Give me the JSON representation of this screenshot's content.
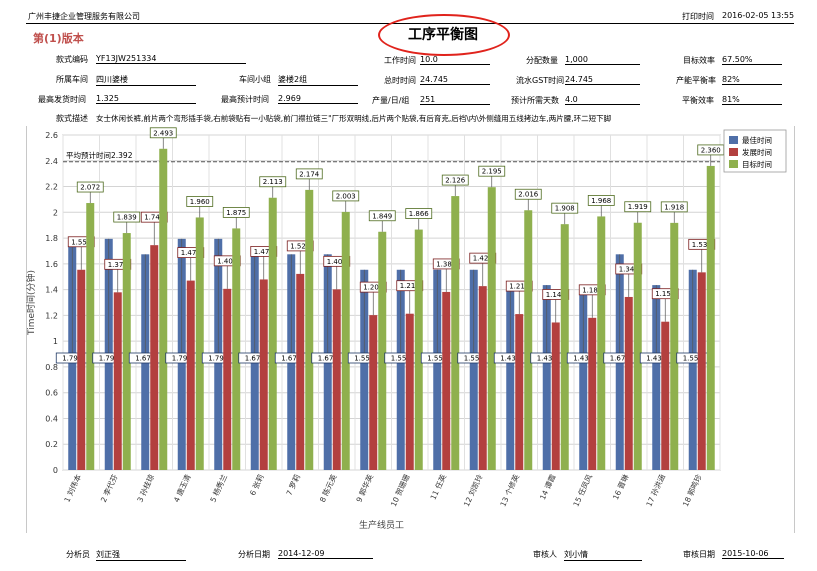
{
  "header": {
    "company": "广州丰捷企业管理服务有限公司",
    "print_label": "打印时间",
    "print_time": "2016-02-05 13:55",
    "version": "第(1)版本",
    "title": "工序平衡图"
  },
  "info": {
    "style_code_label": "款式编码",
    "style_code": "YF13JW251334",
    "work_time_label": "工作时间",
    "work_time": "10.0",
    "allocated_qty_label": "分配数量",
    "allocated_qty": "1,000",
    "target_eff_label": "目标效率",
    "target_eff": "67.50%",
    "workshop_label": "所属车间",
    "workshop": "四川婆楼",
    "team_label": "车间小组",
    "team": "婆楼2组",
    "total_time_label": "总时时间",
    "total_time": "24.745",
    "pipeline_gst_label": "流水GST时间",
    "pipeline_gst": "24.745",
    "balance_rate_label": "产能平衡率",
    "balance_rate": "82%",
    "max_delivery_label": "最高发货时间",
    "max_delivery": "1.325",
    "max_est_label": "最高预计时间",
    "max_est": "2.969",
    "output_label": "产量/日/组",
    "output": "251",
    "est_days_label": "预计所需天数",
    "est_days": "4.0",
    "balance_eff_label": "平衡效率",
    "balance_eff": "81%",
    "desc_label": "款式描述",
    "desc": "女士休闲长裤,前片两个弯形插手袋,右前袋贴有一小贴袋,前门襟拉链三\"厂形双明线,后片两个贴袋,有后育克,后裆\\内\\外侧缝用五线拷边车,两片腰,环二短下脚"
  },
  "footer": {
    "analyst_label": "分析员",
    "analyst": "刘正强",
    "analysis_date_label": "分析日期",
    "analysis_date": "2014-12-09",
    "reviewer_label": "审核人",
    "reviewer": "刘小情",
    "review_date_label": "审核日期",
    "review_date": "2015-10-06"
  },
  "chart_data": {
    "type": "bar",
    "xlabel": "生产线员工",
    "ylabel": "Time时间(分钟)",
    "ylim": [
      0,
      2.6
    ],
    "yticks": [
      "0",
      "0.2",
      "0.4",
      "0.6",
      "0.8",
      "1",
      "1.2",
      "1.4",
      "1.6",
      "1.8",
      "2",
      "2.2",
      "2.4",
      "2.6"
    ],
    "grid": true,
    "legend_position": "top-right",
    "reference_line": {
      "label": "平均预计时间",
      "value": 2.392
    },
    "categories": [
      "1 刘伟本",
      "2 李代芬",
      "3 孙桂琼",
      "4 唐玉清",
      "5 杨秀兰",
      "6 张莉",
      "7 罗莉",
      "8 陈元英",
      "9 郭华英",
      "10 贺珊珊",
      "11 任英",
      "12 刘凯玲",
      "13 个修英",
      "14 谭霞",
      "15 任凤风",
      "16 晋琳",
      "17 孙洪涵",
      "18 郭鸣珍"
    ],
    "series": [
      {
        "name": "最佳时间",
        "color": "#4f6fa8",
        "values": [
          1.794,
          1.794,
          1.674,
          1.794,
          1.794,
          1.674,
          1.674,
          1.674,
          1.554,
          1.554,
          1.554,
          1.554,
          1.435,
          1.435,
          1.435,
          1.674,
          1.435,
          1.554
        ]
      },
      {
        "name": "发展时间",
        "color": "#b3403f",
        "values": [
          1.554,
          1.379,
          1.745,
          1.47,
          1.406,
          1.479,
          1.522,
          1.402,
          1.202,
          1.213,
          1.382,
          1.427,
          1.21,
          1.145,
          1.181,
          1.343,
          1.151,
          1.534
        ]
      },
      {
        "name": "目标时间",
        "color": "#8fb04e",
        "values": [
          2.072,
          1.839,
          2.493,
          1.96,
          1.875,
          2.113,
          2.174,
          2.003,
          1.849,
          1.866,
          2.126,
          2.195,
          2.016,
          1.908,
          1.968,
          1.919,
          1.918,
          2.36
        ]
      }
    ]
  }
}
